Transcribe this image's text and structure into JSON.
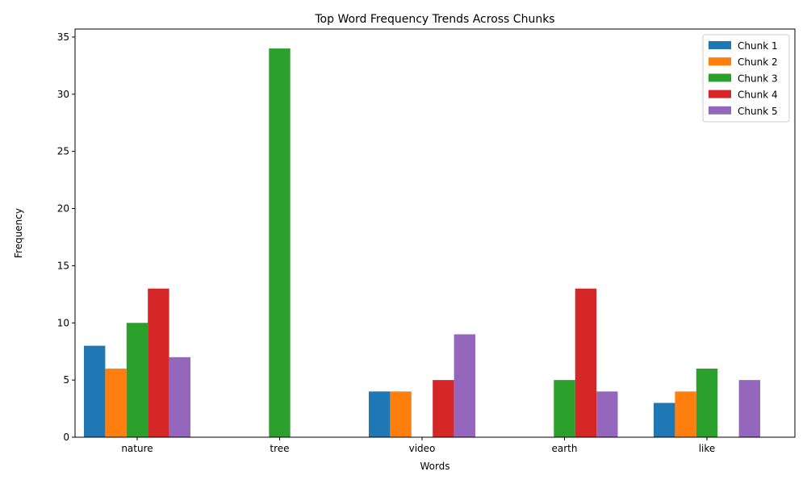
{
  "chart_data": {
    "type": "bar",
    "title": "Top Word Frequency Trends Across Chunks",
    "xlabel": "Words",
    "ylabel": "Frequency",
    "categories": [
      "nature",
      "tree",
      "video",
      "earth",
      "like"
    ],
    "ylim": [
      0,
      35.7
    ],
    "yticks": [
      0,
      5,
      10,
      15,
      20,
      25,
      30,
      35
    ],
    "grid": false,
    "legend_position": "top-right",
    "series": [
      {
        "name": "Chunk 1",
        "color": "#1f77b4",
        "values": [
          8,
          0,
          4,
          0,
          3
        ]
      },
      {
        "name": "Chunk 2",
        "color": "#ff7f0e",
        "values": [
          6,
          0,
          4,
          0,
          4
        ]
      },
      {
        "name": "Chunk 3",
        "color": "#2ca02c",
        "values": [
          10,
          34,
          0,
          5,
          6
        ]
      },
      {
        "name": "Chunk 4",
        "color": "#d62728",
        "values": [
          13,
          0,
          5,
          13,
          0
        ]
      },
      {
        "name": "Chunk 5",
        "color": "#9467bd",
        "values": [
          7,
          0,
          9,
          4,
          5
        ]
      }
    ]
  }
}
